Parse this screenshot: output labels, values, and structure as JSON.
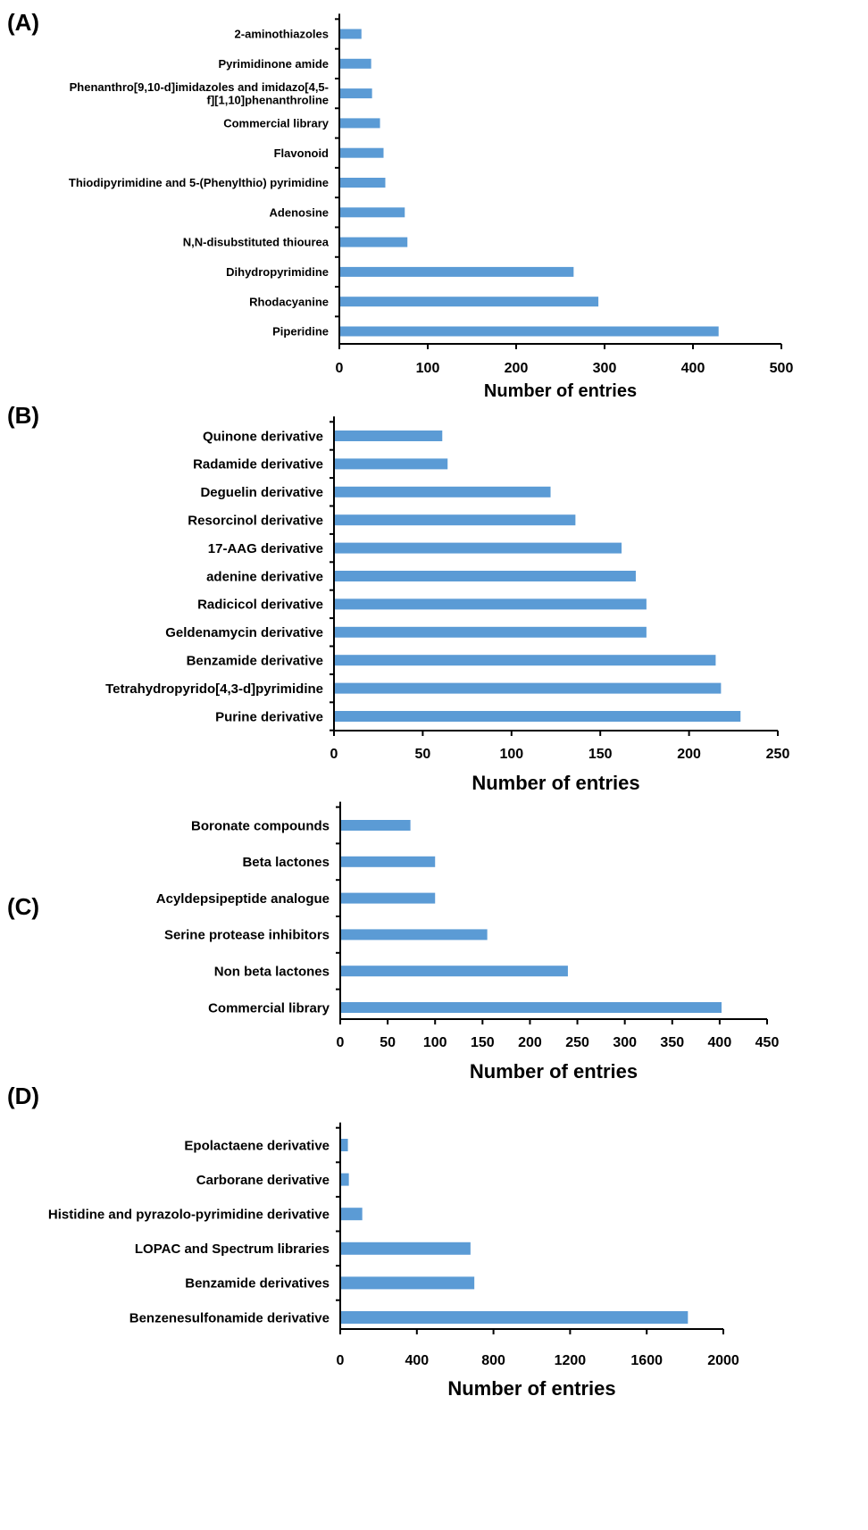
{
  "chart_data": [
    {
      "type": "bar",
      "orientation": "horizontal",
      "panel": "(A)",
      "categories": [
        "2-aminothiazoles",
        "Pyrimidinone amide",
        [
          "Phenanthro[9,10-d]imidazoles and imidazo[4,5-",
          "f][1,10]phenanthroline"
        ],
        "Commercial library",
        "Flavonoid",
        "Thiodipyrimidine and 5-(Phenylthio) pyrimidine",
        "Adenosine",
        "N,N-disubstituted thiourea",
        "Dihydropyrimidine",
        "Rhodacyanine",
        "Piperidine"
      ],
      "values": [
        25,
        36,
        37,
        46,
        50,
        52,
        74,
        77,
        265,
        293,
        429
      ],
      "xlim": [
        0,
        500
      ],
      "xticks": [
        0,
        100,
        200,
        300,
        400,
        500
      ],
      "xlabel": "Number of entries",
      "ylabel": "",
      "grid": false
    },
    {
      "type": "bar",
      "orientation": "horizontal",
      "panel": "(B)",
      "categories": [
        "Quinone derivative",
        "Radamide derivative",
        "Deguelin derivative",
        "Resorcinol derivative",
        "17-AAG derivative",
        "adenine derivative",
        "Radicicol derivative",
        "Geldenamycin derivative",
        "Benzamide derivative",
        "Tetrahydropyrido[4,3-d]pyrimidine",
        "Purine derivative"
      ],
      "values": [
        61,
        64,
        122,
        136,
        162,
        170,
        176,
        176,
        215,
        218,
        229
      ],
      "xlim": [
        0,
        250
      ],
      "xticks": [
        0,
        50,
        100,
        150,
        200,
        250
      ],
      "xlabel": "Number of entries",
      "ylabel": "",
      "grid": false
    },
    {
      "type": "bar",
      "orientation": "horizontal",
      "panel": "(C)",
      "categories": [
        "Boronate compounds",
        "Beta lactones",
        "Acyldepsipeptide analogue",
        "Serine protease inhibitors",
        "Non beta lactones",
        "Commercial library"
      ],
      "values": [
        74,
        100,
        100,
        155,
        240,
        402
      ],
      "xlim": [
        0,
        450
      ],
      "xticks": [
        0,
        50,
        100,
        150,
        200,
        250,
        300,
        350,
        400,
        450
      ],
      "xlabel": "Number of entries",
      "ylabel": "",
      "grid": false
    },
    {
      "type": "bar",
      "orientation": "horizontal",
      "panel": "(D)",
      "categories": [
        "Epolactaene derivative",
        "Carborane derivative",
        "Histidine and pyrazolo-pyrimidine derivative",
        "LOPAC and Spectrum libraries",
        "Benzamide derivatives",
        "Benzenesulfonamide derivative"
      ],
      "values": [
        40,
        45,
        115,
        680,
        700,
        1815
      ],
      "xlim": [
        0,
        2000
      ],
      "xticks": [
        0,
        400,
        800,
        1200,
        1600,
        2000
      ],
      "xlabel": "Number of entries",
      "ylabel": "",
      "grid": false
    }
  ],
  "colors": {
    "bar": "#5b9bd5",
    "axis": "#000000",
    "background": "#ffffff"
  }
}
